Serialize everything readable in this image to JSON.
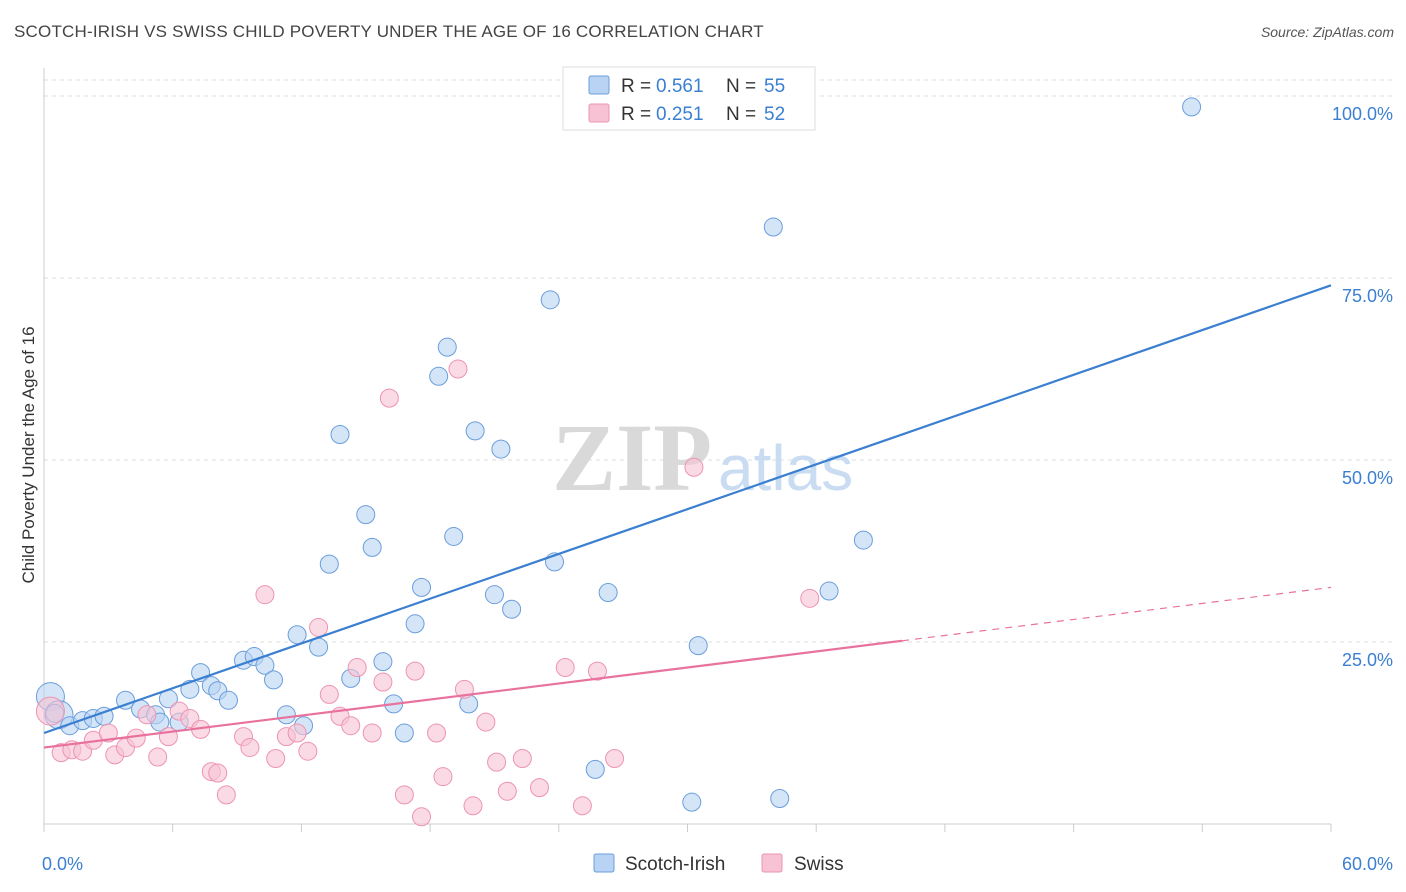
{
  "title": "SCOTCH-IRISH VS SWISS CHILD POVERTY UNDER THE AGE OF 16 CORRELATION CHART",
  "source": "Source: ZipAtlas.com",
  "watermark": {
    "zip": "ZIP",
    "atlas": "atlas"
  },
  "colors": {
    "blue": "#3b7fd1",
    "blue_fill": "#b8d3f3",
    "blue_stroke": "#6b9edb",
    "pink": "#e8729d",
    "pink_fill": "#f7c3d4",
    "pink_stroke": "#ee93b3",
    "grid": "#dddddd"
  },
  "legend": {
    "rows": [
      {
        "r_label": "R = ",
        "r_value": "0.561",
        "n_label": "N = ",
        "n_value": "55",
        "series": "blue"
      },
      {
        "r_label": "R = ",
        "r_value": "0.251",
        "n_label": "N = ",
        "n_value": "52",
        "series": "pink"
      }
    ]
  },
  "chart_data": {
    "type": "scatter",
    "title": "SCOTCH-IRISH VS SWISS CHILD POVERTY UNDER THE AGE OF 16 CORRELATION CHART",
    "xlabel": "",
    "ylabel": "Child Poverty Under the Age of 16",
    "xlim": [
      0,
      60
    ],
    "ylim": [
      0,
      100
    ],
    "x_tick_labels": [
      "0.0%",
      "60.0%"
    ],
    "y_ticks": [
      25,
      50,
      75,
      100
    ],
    "y_tick_labels": [
      "25.0%",
      "50.0%",
      "75.0%",
      "100.0%"
    ],
    "grid": true,
    "legend_position": "top-center",
    "series": [
      {
        "name": "Scotch-Irish",
        "color": "blue",
        "trend": {
          "x": [
            0,
            60
          ],
          "y": [
            12.5,
            74.0
          ],
          "dashed_from": null
        },
        "points": [
          [
            0.3,
            17.5,
            14
          ],
          [
            0.7,
            15.0,
            14
          ],
          [
            1.2,
            13.5,
            9
          ],
          [
            1.8,
            14.2,
            9
          ],
          [
            2.3,
            14.5,
            9
          ],
          [
            2.8,
            14.8,
            9
          ],
          [
            3.8,
            17.0,
            9
          ],
          [
            4.5,
            15.8,
            9
          ],
          [
            5.2,
            15.0,
            9
          ],
          [
            5.4,
            14.0,
            9
          ],
          [
            5.8,
            17.2,
            9
          ],
          [
            6.3,
            14.0,
            9
          ],
          [
            6.8,
            18.5,
            9
          ],
          [
            7.3,
            20.8,
            9
          ],
          [
            7.8,
            19.0,
            9
          ],
          [
            8.1,
            18.3,
            9
          ],
          [
            8.6,
            17.0,
            9
          ],
          [
            9.3,
            22.5,
            9
          ],
          [
            9.8,
            23.0,
            9
          ],
          [
            10.3,
            21.8,
            9
          ],
          [
            10.7,
            19.8,
            9
          ],
          [
            11.3,
            15.0,
            9
          ],
          [
            11.8,
            26.0,
            9
          ],
          [
            12.1,
            13.5,
            9
          ],
          [
            12.8,
            24.3,
            9
          ],
          [
            13.3,
            35.7,
            9
          ],
          [
            13.8,
            53.5,
            9
          ],
          [
            14.3,
            20.0,
            9
          ],
          [
            15.0,
            42.5,
            9
          ],
          [
            15.3,
            38.0,
            9
          ],
          [
            15.8,
            22.3,
            9
          ],
          [
            16.3,
            16.5,
            9
          ],
          [
            16.8,
            12.5,
            9
          ],
          [
            17.3,
            27.5,
            9
          ],
          [
            17.6,
            32.5,
            9
          ],
          [
            18.4,
            61.5,
            9
          ],
          [
            18.8,
            65.5,
            9
          ],
          [
            19.1,
            39.5,
            9
          ],
          [
            19.8,
            16.5,
            9
          ],
          [
            20.1,
            54.0,
            9
          ],
          [
            21.0,
            31.5,
            9
          ],
          [
            21.3,
            51.5,
            9
          ],
          [
            21.8,
            29.5,
            9
          ],
          [
            23.6,
            72.0,
            9
          ],
          [
            23.8,
            36.0,
            9
          ],
          [
            25.7,
            7.5,
            9
          ],
          [
            26.3,
            31.8,
            9
          ],
          [
            30.2,
            3.0,
            9
          ],
          [
            30.5,
            24.5,
            9
          ],
          [
            34.0,
            82.0,
            9
          ],
          [
            34.3,
            3.5,
            9
          ],
          [
            36.6,
            32.0,
            9
          ],
          [
            38.2,
            39.0,
            9
          ],
          [
            53.5,
            98.5,
            9
          ],
          [
            0.5,
            15.2,
            9
          ]
        ]
      },
      {
        "name": "Swiss",
        "color": "pink",
        "trend": {
          "x": [
            0,
            60
          ],
          "y": [
            10.5,
            32.5
          ],
          "dashed_from": 40
        },
        "points": [
          [
            0.3,
            15.5,
            14
          ],
          [
            0.8,
            9.8,
            9
          ],
          [
            1.3,
            10.2,
            9
          ],
          [
            1.8,
            10.0,
            9
          ],
          [
            2.3,
            11.5,
            9
          ],
          [
            3.0,
            12.5,
            9
          ],
          [
            3.3,
            9.5,
            9
          ],
          [
            3.8,
            10.5,
            9
          ],
          [
            4.3,
            11.8,
            9
          ],
          [
            4.8,
            15.0,
            9
          ],
          [
            5.3,
            9.2,
            9
          ],
          [
            5.8,
            12.0,
            9
          ],
          [
            6.3,
            15.5,
            9
          ],
          [
            6.8,
            14.5,
            9
          ],
          [
            7.3,
            13.0,
            9
          ],
          [
            7.8,
            7.2,
            9
          ],
          [
            8.1,
            7.0,
            9
          ],
          [
            8.5,
            4.0,
            9
          ],
          [
            9.3,
            12.0,
            9
          ],
          [
            9.6,
            10.5,
            9
          ],
          [
            10.3,
            31.5,
            9
          ],
          [
            10.8,
            9.0,
            9
          ],
          [
            11.3,
            12.0,
            9
          ],
          [
            11.8,
            12.5,
            9
          ],
          [
            12.3,
            10.0,
            9
          ],
          [
            12.8,
            27.0,
            9
          ],
          [
            13.3,
            17.8,
            9
          ],
          [
            13.8,
            14.8,
            9
          ],
          [
            14.3,
            13.5,
            9
          ],
          [
            14.6,
            21.5,
            9
          ],
          [
            15.3,
            12.5,
            9
          ],
          [
            15.8,
            19.5,
            9
          ],
          [
            16.1,
            58.5,
            9
          ],
          [
            16.8,
            4.0,
            9
          ],
          [
            17.3,
            21.0,
            9
          ],
          [
            17.6,
            1.0,
            9
          ],
          [
            18.3,
            12.5,
            9
          ],
          [
            18.6,
            6.5,
            9
          ],
          [
            19.3,
            62.5,
            9
          ],
          [
            19.6,
            18.5,
            9
          ],
          [
            20.0,
            2.5,
            9
          ],
          [
            20.6,
            14.0,
            9
          ],
          [
            21.1,
            8.5,
            9
          ],
          [
            21.6,
            4.5,
            9
          ],
          [
            22.3,
            9.0,
            9
          ],
          [
            23.1,
            5.0,
            9
          ],
          [
            24.3,
            21.5,
            9
          ],
          [
            25.1,
            2.5,
            9
          ],
          [
            25.8,
            21.0,
            9
          ],
          [
            26.6,
            9.0,
            9
          ],
          [
            30.3,
            49.0,
            9
          ],
          [
            35.7,
            31.0,
            9
          ]
        ]
      }
    ]
  },
  "bottom_legend": [
    {
      "label": "Scotch-Irish",
      "series": "blue"
    },
    {
      "label": "Swiss",
      "series": "pink"
    }
  ]
}
